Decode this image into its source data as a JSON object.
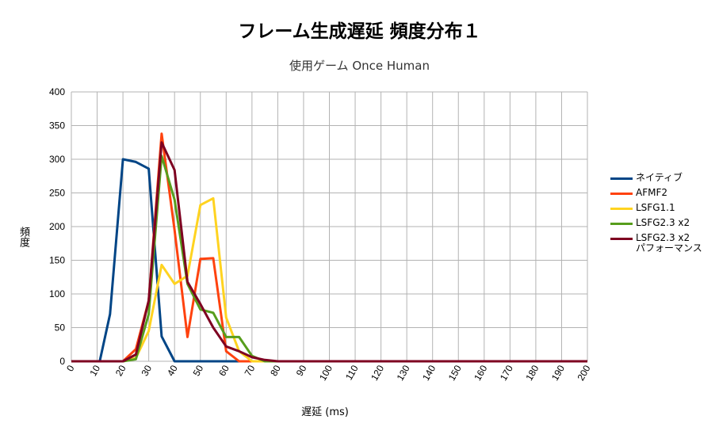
{
  "chart_data": {
    "type": "line",
    "title": "フレーム生成遅延 頻度分布１",
    "subtitle": "使用ゲーム  Once Human",
    "xlabel": "遅延 (ms)",
    "ylabel": "頻度",
    "xlim": [
      0,
      200
    ],
    "ylim": [
      0,
      400
    ],
    "x_ticks": [
      0,
      10,
      20,
      30,
      40,
      50,
      60,
      70,
      80,
      90,
      100,
      110,
      120,
      130,
      140,
      150,
      160,
      170,
      180,
      190,
      200
    ],
    "y_ticks": [
      0,
      50,
      100,
      150,
      200,
      250,
      300,
      350,
      400
    ],
    "grid": true,
    "legend_position": "right",
    "series": [
      {
        "name": "ネイティブ",
        "color": "#004586",
        "x": [
          0,
          5,
          10,
          11,
          15,
          20,
          25,
          30,
          35,
          40,
          45,
          50,
          55,
          60,
          65,
          70,
          75,
          80,
          90,
          100,
          150,
          200
        ],
        "y": [
          0,
          0,
          0,
          0,
          70,
          300,
          296,
          286,
          37,
          0,
          0,
          0,
          0,
          0,
          0,
          0,
          0,
          0,
          0,
          0,
          0,
          0
        ]
      },
      {
        "name": "AFMF2",
        "color": "#ff420e",
        "x": [
          0,
          5,
          10,
          15,
          20,
          25,
          30,
          35,
          40,
          45,
          50,
          55,
          60,
          65,
          70,
          75,
          80,
          90,
          100,
          150,
          200
        ],
        "y": [
          0,
          0,
          0,
          0,
          0,
          18,
          90,
          338,
          195,
          36,
          152,
          153,
          15,
          0,
          0,
          0,
          0,
          0,
          0,
          0,
          0
        ]
      },
      {
        "name": "LSFG1.1",
        "color": "#ffd320",
        "x": [
          0,
          5,
          10,
          15,
          20,
          25,
          30,
          35,
          40,
          45,
          50,
          55,
          60,
          65,
          70,
          75,
          80,
          90,
          100,
          150,
          200
        ],
        "y": [
          0,
          0,
          0,
          0,
          0,
          5,
          45,
          143,
          115,
          127,
          232,
          242,
          65,
          15,
          0,
          0,
          0,
          0,
          0,
          0,
          0
        ]
      },
      {
        "name": "LSFG2.3 x2",
        "color": "#579d1c",
        "x": [
          0,
          5,
          10,
          15,
          20,
          25,
          30,
          35,
          40,
          45,
          50,
          55,
          60,
          65,
          70,
          75,
          80,
          90,
          100,
          150,
          200
        ],
        "y": [
          0,
          0,
          0,
          0,
          0,
          3,
          70,
          305,
          240,
          115,
          77,
          72,
          36,
          36,
          8,
          0,
          0,
          0,
          0,
          0,
          0
        ]
      },
      {
        "name": "LSFG2.3 x2\nパフォーマンス",
        "color": "#7e0021",
        "x": [
          0,
          5,
          10,
          15,
          20,
          25,
          30,
          35,
          40,
          45,
          50,
          55,
          60,
          65,
          70,
          75,
          80,
          85,
          90,
          100,
          150,
          200
        ],
        "y": [
          0,
          0,
          0,
          0,
          0,
          10,
          90,
          325,
          284,
          118,
          85,
          50,
          22,
          15,
          6,
          2,
          0,
          0,
          0,
          0,
          0,
          0
        ]
      }
    ]
  }
}
